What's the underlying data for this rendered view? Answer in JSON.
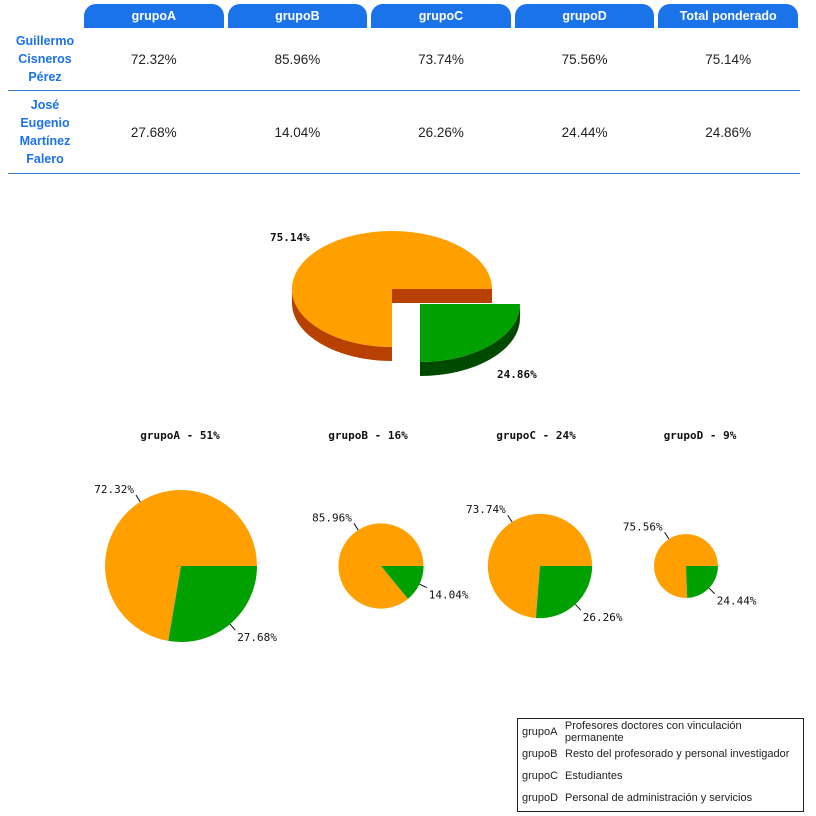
{
  "table": {
    "columns": [
      "grupoA",
      "grupoB",
      "grupoC",
      "grupoD",
      "Total ponderado"
    ],
    "rows": [
      {
        "name_lines": [
          "Guillermo",
          "Cisneros",
          "Pérez"
        ],
        "values": [
          "72.32%",
          "85.96%",
          "73.74%",
          "75.56%",
          "75.14%"
        ]
      },
      {
        "name_lines": [
          "José",
          "Eugenio",
          "Martínez",
          "Falero"
        ],
        "values": [
          "27.68%",
          "14.04%",
          "26.26%",
          "24.44%",
          "24.86%"
        ]
      }
    ]
  },
  "colors": {
    "orange": "#ffa000",
    "orange_dark": "#b84000",
    "green": "#00a000",
    "green_dark": "#004a00",
    "header_blue": "#1a73e8"
  },
  "chart_data": [
    {
      "type": "pie",
      "labels": [
        "75.14%",
        "24.86%"
      ],
      "values": [
        75.14,
        24.86
      ],
      "style": "3d-exploded"
    },
    {
      "type": "pie",
      "title": "grupoA - 51%",
      "labels": [
        "72.32%",
        "27.68%"
      ],
      "values": [
        72.32,
        27.68
      ],
      "group_weight": 51
    },
    {
      "type": "pie",
      "title": "grupoB - 16%",
      "labels": [
        "85.96%",
        "14.04%"
      ],
      "values": [
        85.96,
        14.04
      ],
      "group_weight": 16
    },
    {
      "type": "pie",
      "title": "grupoC - 24%",
      "labels": [
        "73.74%",
        "26.26%"
      ],
      "values": [
        73.74,
        26.26
      ],
      "group_weight": 24
    },
    {
      "type": "pie",
      "title": "grupoD - 9%",
      "labels": [
        "75.56%",
        "24.44%"
      ],
      "values": [
        75.56,
        24.44
      ],
      "group_weight": 9
    }
  ],
  "legend": [
    {
      "code": "grupoA",
      "desc": "Profesores doctores con vinculación permanente"
    },
    {
      "code": "grupoB",
      "desc": "Resto del profesorado y personal investigador"
    },
    {
      "code": "grupoC",
      "desc": "Estudiantes"
    },
    {
      "code": "grupoD",
      "desc": "Personal de administración y servicios"
    }
  ]
}
